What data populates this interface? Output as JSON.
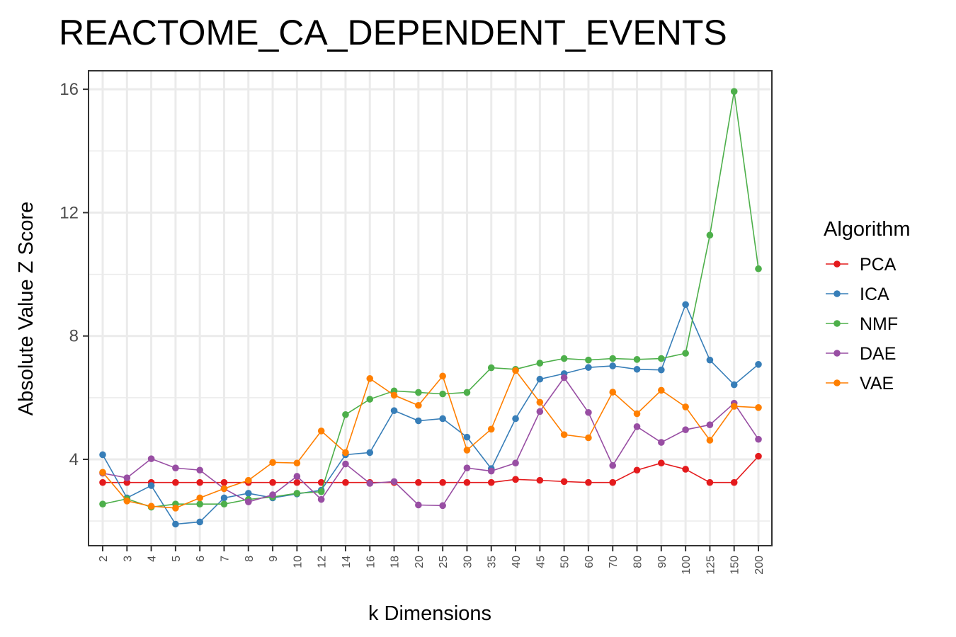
{
  "chart_data": {
    "type": "line",
    "title": "REACTOME_CA_DEPENDENT_EVENTS",
    "xlabel": "k Dimensions",
    "ylabel": "Absolute Value Z Score",
    "categories": [
      "2",
      "3",
      "4",
      "5",
      "6",
      "7",
      "8",
      "9",
      "10",
      "12",
      "14",
      "16",
      "18",
      "20",
      "25",
      "30",
      "35",
      "40",
      "45",
      "50",
      "60",
      "70",
      "80",
      "90",
      "100",
      "125",
      "150",
      "200"
    ],
    "y_ticks": [
      "4",
      "8",
      "12",
      "16"
    ],
    "ylim": [
      1.2,
      16.6
    ],
    "grid": true,
    "legend": {
      "title": "Algorithm",
      "position": "right"
    },
    "series": [
      {
        "name": "PCA",
        "color": "#E41A1C",
        "values": [
          3.25,
          3.25,
          3.25,
          3.25,
          3.25,
          3.25,
          3.25,
          3.25,
          3.25,
          3.25,
          3.25,
          3.25,
          3.25,
          3.25,
          3.25,
          3.25,
          3.25,
          3.35,
          3.32,
          3.28,
          3.25,
          3.25,
          3.65,
          3.88,
          3.68,
          3.25,
          3.25,
          4.1
        ]
      },
      {
        "name": "ICA",
        "color": "#377EB8",
        "values": [
          4.15,
          2.75,
          3.15,
          1.9,
          1.97,
          2.75,
          2.9,
          2.75,
          2.88,
          3.0,
          4.15,
          4.22,
          5.58,
          5.25,
          5.32,
          4.72,
          3.7,
          5.32,
          6.6,
          6.78,
          6.98,
          7.03,
          6.92,
          6.9,
          9.02,
          7.22,
          6.42,
          7.08
        ]
      },
      {
        "name": "NMF",
        "color": "#4DAF4A",
        "values": [
          2.55,
          2.72,
          2.45,
          2.55,
          2.55,
          2.55,
          2.7,
          2.78,
          2.9,
          2.95,
          5.45,
          5.95,
          6.22,
          6.17,
          6.12,
          6.17,
          6.97,
          6.92,
          7.12,
          7.27,
          7.22,
          7.27,
          7.24,
          7.27,
          7.44,
          11.27,
          15.93,
          10.18
        ]
      },
      {
        "name": "DAE",
        "color": "#984EA3",
        "values": [
          3.55,
          3.4,
          4.02,
          3.72,
          3.65,
          3.05,
          2.62,
          2.85,
          3.45,
          2.7,
          3.85,
          3.22,
          3.28,
          2.52,
          2.5,
          3.72,
          3.62,
          3.88,
          5.55,
          6.65,
          5.52,
          3.8,
          5.06,
          4.55,
          4.96,
          5.12,
          5.82,
          4.65
        ]
      },
      {
        "name": "VAE",
        "color": "#FF7F00",
        "values": [
          3.58,
          2.65,
          2.48,
          2.42,
          2.75,
          3.05,
          3.32,
          3.9,
          3.88,
          4.92,
          4.22,
          6.62,
          6.08,
          5.75,
          6.7,
          4.3,
          4.98,
          6.88,
          5.85,
          4.8,
          4.7,
          6.18,
          5.48,
          6.24,
          5.7,
          4.62,
          5.72,
          5.68
        ]
      }
    ]
  }
}
